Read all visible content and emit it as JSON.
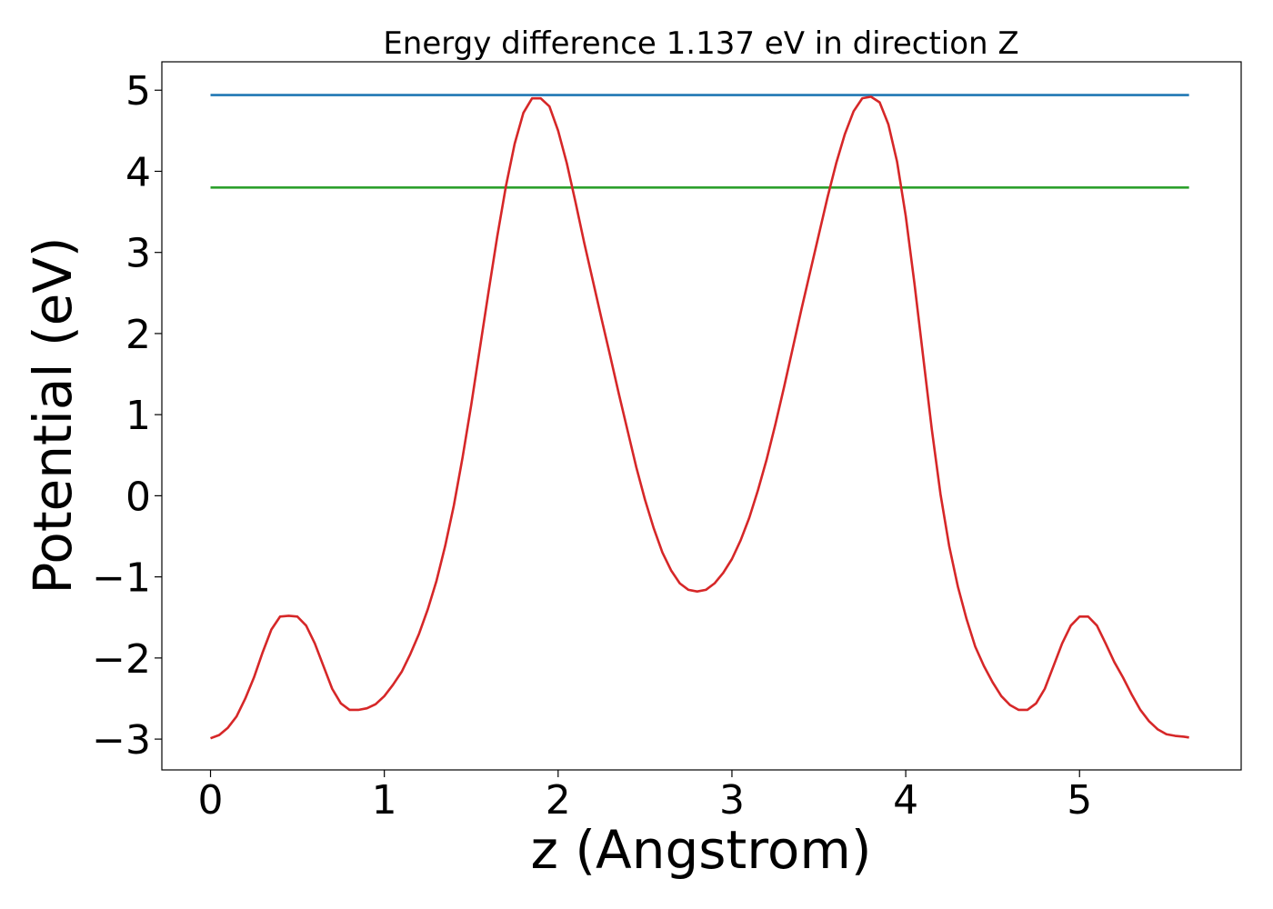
{
  "chart_data": {
    "type": "line",
    "title": "Energy difference 1.137 eV in direction Z",
    "xlabel": "z (Angstrom)",
    "ylabel": "Potential (eV)",
    "xlim": [
      -0.28,
      5.93
    ],
    "ylim": [
      -3.38,
      5.35
    ],
    "x_ticks": [
      0,
      1,
      2,
      3,
      4,
      5
    ],
    "x_tick_labels": [
      "0",
      "1",
      "2",
      "3",
      "4",
      "5"
    ],
    "y_ticks": [
      -3,
      -2,
      -1,
      0,
      1,
      2,
      3,
      4,
      5
    ],
    "y_tick_labels": [
      "−3",
      "−2",
      "−1",
      "0",
      "1",
      "2",
      "3",
      "4",
      "5"
    ],
    "grid": false,
    "legend": "none",
    "series": [
      {
        "color": "#1f77b4",
        "x": [
          0,
          5.63
        ],
        "y": [
          4.94,
          4.94
        ]
      },
      {
        "color": "#2ca02c",
        "x": [
          0,
          5.63
        ],
        "y": [
          3.8,
          3.8
        ]
      },
      {
        "color": "#d62728",
        "x": [
          0,
          0.05,
          0.1,
          0.15,
          0.2,
          0.25,
          0.3,
          0.35,
          0.4,
          0.45,
          0.5,
          0.55,
          0.6,
          0.65,
          0.7,
          0.75,
          0.8,
          0.85,
          0.9,
          0.95,
          1.0,
          1.05,
          1.1,
          1.15,
          1.2,
          1.25,
          1.3,
          1.35,
          1.4,
          1.45,
          1.5,
          1.55,
          1.6,
          1.65,
          1.7,
          1.75,
          1.8,
          1.85,
          1.9,
          1.95,
          2.0,
          2.05,
          2.1,
          2.15,
          2.2,
          2.25,
          2.3,
          2.35,
          2.4,
          2.45,
          2.5,
          2.55,
          2.6,
          2.65,
          2.7,
          2.75,
          2.8,
          2.85,
          2.9,
          2.95,
          3.0,
          3.05,
          3.1,
          3.15,
          3.2,
          3.25,
          3.3,
          3.35,
          3.4,
          3.45,
          3.5,
          3.55,
          3.6,
          3.65,
          3.7,
          3.75,
          3.8,
          3.85,
          3.9,
          3.95,
          4.0,
          4.05,
          4.1,
          4.15,
          4.2,
          4.25,
          4.3,
          4.35,
          4.4,
          4.45,
          4.5,
          4.55,
          4.6,
          4.65,
          4.7,
          4.75,
          4.8,
          4.85,
          4.9,
          4.95,
          5.0,
          5.05,
          5.1,
          5.15,
          5.2,
          5.25,
          5.3,
          5.35,
          5.4,
          5.45,
          5.5,
          5.55,
          5.6,
          5.63
        ],
        "y": [
          -2.99,
          -2.95,
          -2.86,
          -2.72,
          -2.5,
          -2.24,
          -1.93,
          -1.65,
          -1.49,
          -1.48,
          -1.49,
          -1.6,
          -1.82,
          -2.1,
          -2.38,
          -2.56,
          -2.64,
          -2.64,
          -2.62,
          -2.57,
          -2.47,
          -2.33,
          -2.17,
          -1.95,
          -1.7,
          -1.4,
          -1.05,
          -0.62,
          -0.12,
          0.47,
          1.12,
          1.82,
          2.52,
          3.2,
          3.82,
          4.34,
          4.72,
          4.9,
          4.9,
          4.8,
          4.5,
          4.1,
          3.62,
          3.12,
          2.65,
          2.18,
          1.72,
          1.25,
          0.8,
          0.35,
          -0.05,
          -0.4,
          -0.7,
          -0.92,
          -1.08,
          -1.16,
          -1.18,
          -1.16,
          -1.08,
          -0.95,
          -0.78,
          -0.55,
          -0.27,
          0.07,
          0.45,
          0.88,
          1.34,
          1.82,
          2.3,
          2.76,
          3.22,
          3.68,
          4.1,
          4.46,
          4.74,
          4.9,
          4.92,
          4.85,
          4.58,
          4.12,
          3.45,
          2.62,
          1.72,
          0.82,
          0.02,
          -0.62,
          -1.12,
          -1.52,
          -1.86,
          -2.1,
          -2.3,
          -2.47,
          -2.58,
          -2.64,
          -2.64,
          -2.56,
          -2.38,
          -2.1,
          -1.82,
          -1.6,
          -1.49,
          -1.49,
          -1.6,
          -1.82,
          -2.05,
          -2.24,
          -2.45,
          -2.64,
          -2.78,
          -2.88,
          -2.94,
          -2.96,
          -2.97,
          -2.98
        ]
      }
    ]
  }
}
